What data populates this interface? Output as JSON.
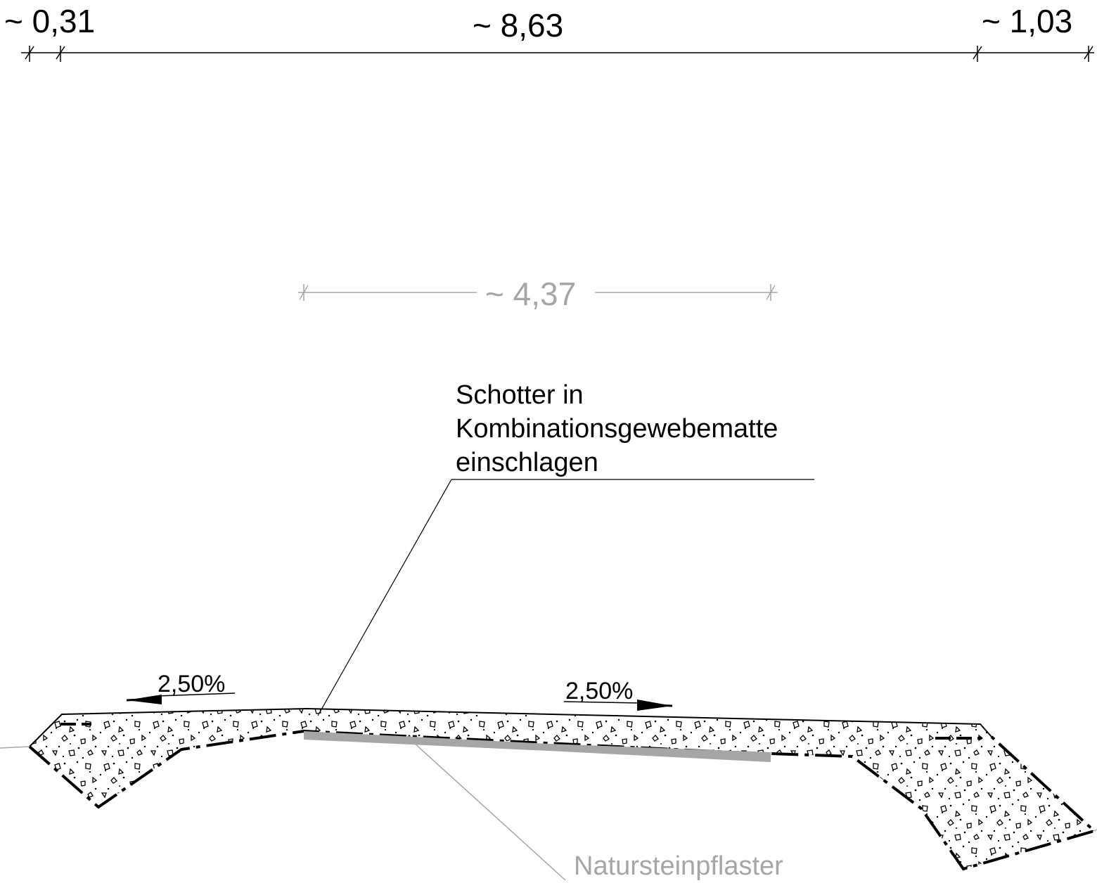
{
  "dimensions": {
    "top": [
      {
        "value": "~ 0,31"
      },
      {
        "value": "~ 8,63"
      },
      {
        "value": "~ 1,03"
      }
    ],
    "middle": {
      "value": "~ 4,37"
    }
  },
  "annotations": {
    "schotter": {
      "line1": "Schotter in",
      "line2": "Kombinationsgewebematte",
      "line3": "einschlagen"
    },
    "pflaster": "Natursteinpflaster"
  },
  "slopes": {
    "left": "2,50%",
    "right": "2,50%"
  },
  "colors": {
    "line": "#000000",
    "secondary": "#a6a6a6",
    "paving": "#a6a6a6"
  }
}
